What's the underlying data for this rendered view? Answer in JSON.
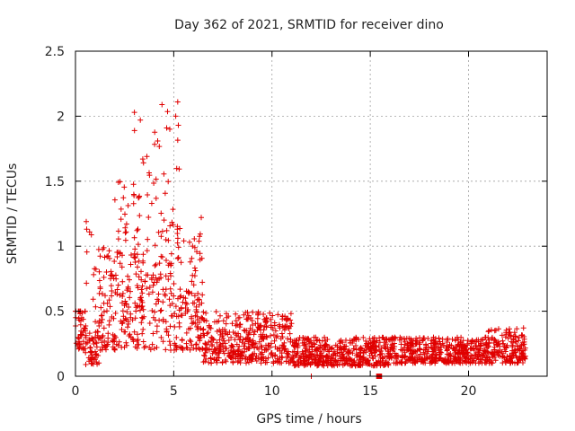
{
  "chart_data": {
    "type": "scatter",
    "title": "Day 362 of 2021, SRMTID for receiver dino",
    "xlabel": "GPS time / hours",
    "ylabel": "SRMTID / TECUs",
    "xlim": [
      0,
      24
    ],
    "ylim": [
      0,
      2.5
    ],
    "xticks": [
      0,
      5,
      10,
      15,
      20
    ],
    "xtick_labels": [
      "0",
      "5",
      "10",
      "15",
      "20"
    ],
    "yticks": [
      0,
      0.5,
      1,
      1.5,
      2,
      2.5
    ],
    "ytick_labels": [
      "0",
      "0.5",
      "1",
      "1.5",
      "2",
      "2.5"
    ],
    "grid": true,
    "marker": "+",
    "color": "#e00000",
    "series": [
      {
        "name": "SRMTID",
        "note": "dense red '+' point cloud; values summarised by time windows (hours) with approximate value ranges (TECU)",
        "windows": [
          {
            "x": [
              0.0,
              0.5
            ],
            "y_typ": [
              0.2,
              0.5
            ],
            "y_max": 0.5
          },
          {
            "x": [
              0.5,
              1.2
            ],
            "y_typ": [
              0.08,
              0.35
            ],
            "y_max": 1.2
          },
          {
            "x": [
              1.2,
              2.0
            ],
            "y_typ": [
              0.2,
              0.8
            ],
            "y_max": 1.0
          },
          {
            "x": [
              2.0,
              3.0
            ],
            "y_typ": [
              0.2,
              1.0
            ],
            "y_max": 1.5
          },
          {
            "x": [
              3.0,
              4.0
            ],
            "y_typ": [
              0.2,
              1.0
            ],
            "y_max": 2.0
          },
          {
            "x": [
              4.0,
              5.3
            ],
            "y_typ": [
              0.2,
              1.2
            ],
            "y_max": 2.1
          },
          {
            "x": [
              5.3,
              6.5
            ],
            "y_typ": [
              0.2,
              0.7
            ],
            "y_max": 1.25
          },
          {
            "x": [
              6.5,
              9.0
            ],
            "y_typ": [
              0.1,
              0.35
            ],
            "y_max": 0.5
          },
          {
            "x": [
              9.0,
              11.0
            ],
            "y_typ": [
              0.1,
              0.4
            ],
            "y_max": 0.5
          },
          {
            "x": [
              11.0,
              16.0
            ],
            "y_typ": [
              0.08,
              0.25
            ],
            "y_max": 0.3
          },
          {
            "x": [
              16.0,
              21.0
            ],
            "y_typ": [
              0.1,
              0.25
            ],
            "y_max": 0.3
          },
          {
            "x": [
              21.0,
              22.9
            ],
            "y_typ": [
              0.1,
              0.3
            ],
            "y_max": 0.38
          }
        ],
        "peaks": [
          {
            "x": 3.0,
            "y": 2.03
          },
          {
            "x": 3.3,
            "y": 1.97
          },
          {
            "x": 5.2,
            "y": 2.11
          },
          {
            "x": 5.1,
            "y": 2.0
          },
          {
            "x": 4.8,
            "y": 1.9
          },
          {
            "x": 0.55,
            "y": 1.19
          },
          {
            "x": 6.4,
            "y": 1.22
          },
          {
            "x": 12.0,
            "y": 0.0
          }
        ],
        "gap_marker": {
          "x_range": [
            15.3,
            15.6
          ],
          "y": 0.0
        }
      }
    ]
  }
}
